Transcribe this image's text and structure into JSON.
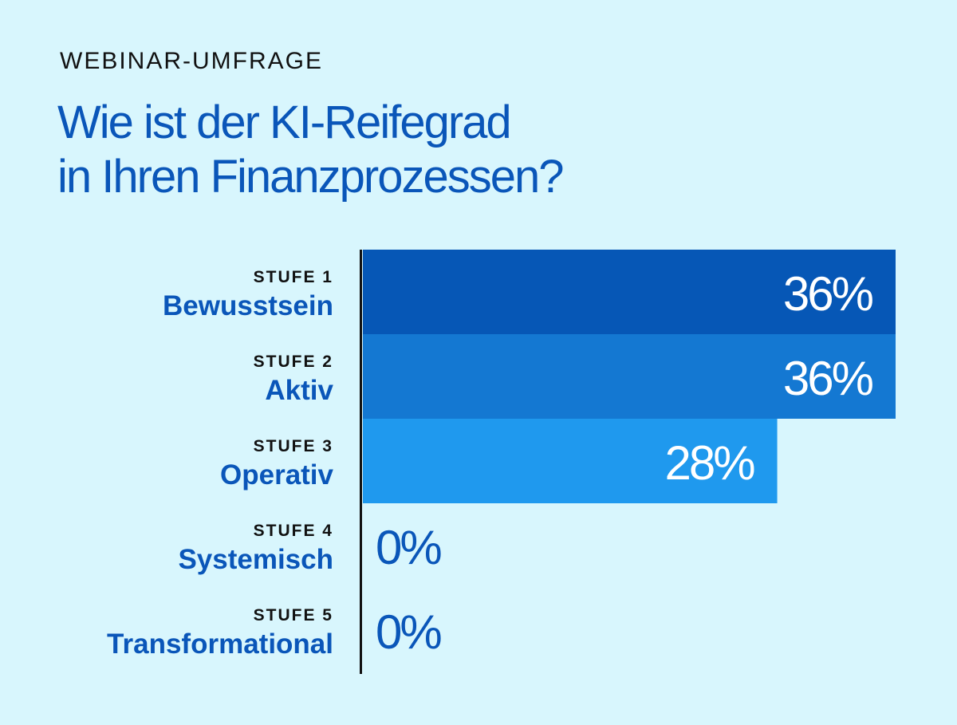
{
  "header": {
    "eyebrow": "WEBINAR-UMFRAGE",
    "title_line1": "Wie ist der KI-Reifegrad",
    "title_line2": "in Ihren Finanzprozessen?"
  },
  "colors": {
    "background": "#d8f6fd",
    "title": "#0a56b9",
    "axis": "#111111",
    "value_inside": "#ffffff",
    "value_outside": "#0a56b9"
  },
  "chart_data": {
    "type": "bar",
    "orientation": "horizontal",
    "categories": [
      {
        "stage": "STUFE 1",
        "name": "Bewusstsein"
      },
      {
        "stage": "STUFE 2",
        "name": "Aktiv"
      },
      {
        "stage": "STUFE 3",
        "name": "Operativ"
      },
      {
        "stage": "STUFE 4",
        "name": "Systemisch"
      },
      {
        "stage": "STUFE 5",
        "name": "Transformational"
      }
    ],
    "values": [
      36,
      36,
      28,
      0,
      0
    ],
    "value_labels": [
      "36%",
      "36%",
      "28%",
      "0%",
      "0%"
    ],
    "bar_colors": [
      "#0657b6",
      "#1478d2",
      "#1f99ee",
      "#1f99ee",
      "#1f99ee"
    ],
    "unit": "%",
    "xlim": [
      0,
      36
    ],
    "grid": false,
    "legend": "none"
  }
}
